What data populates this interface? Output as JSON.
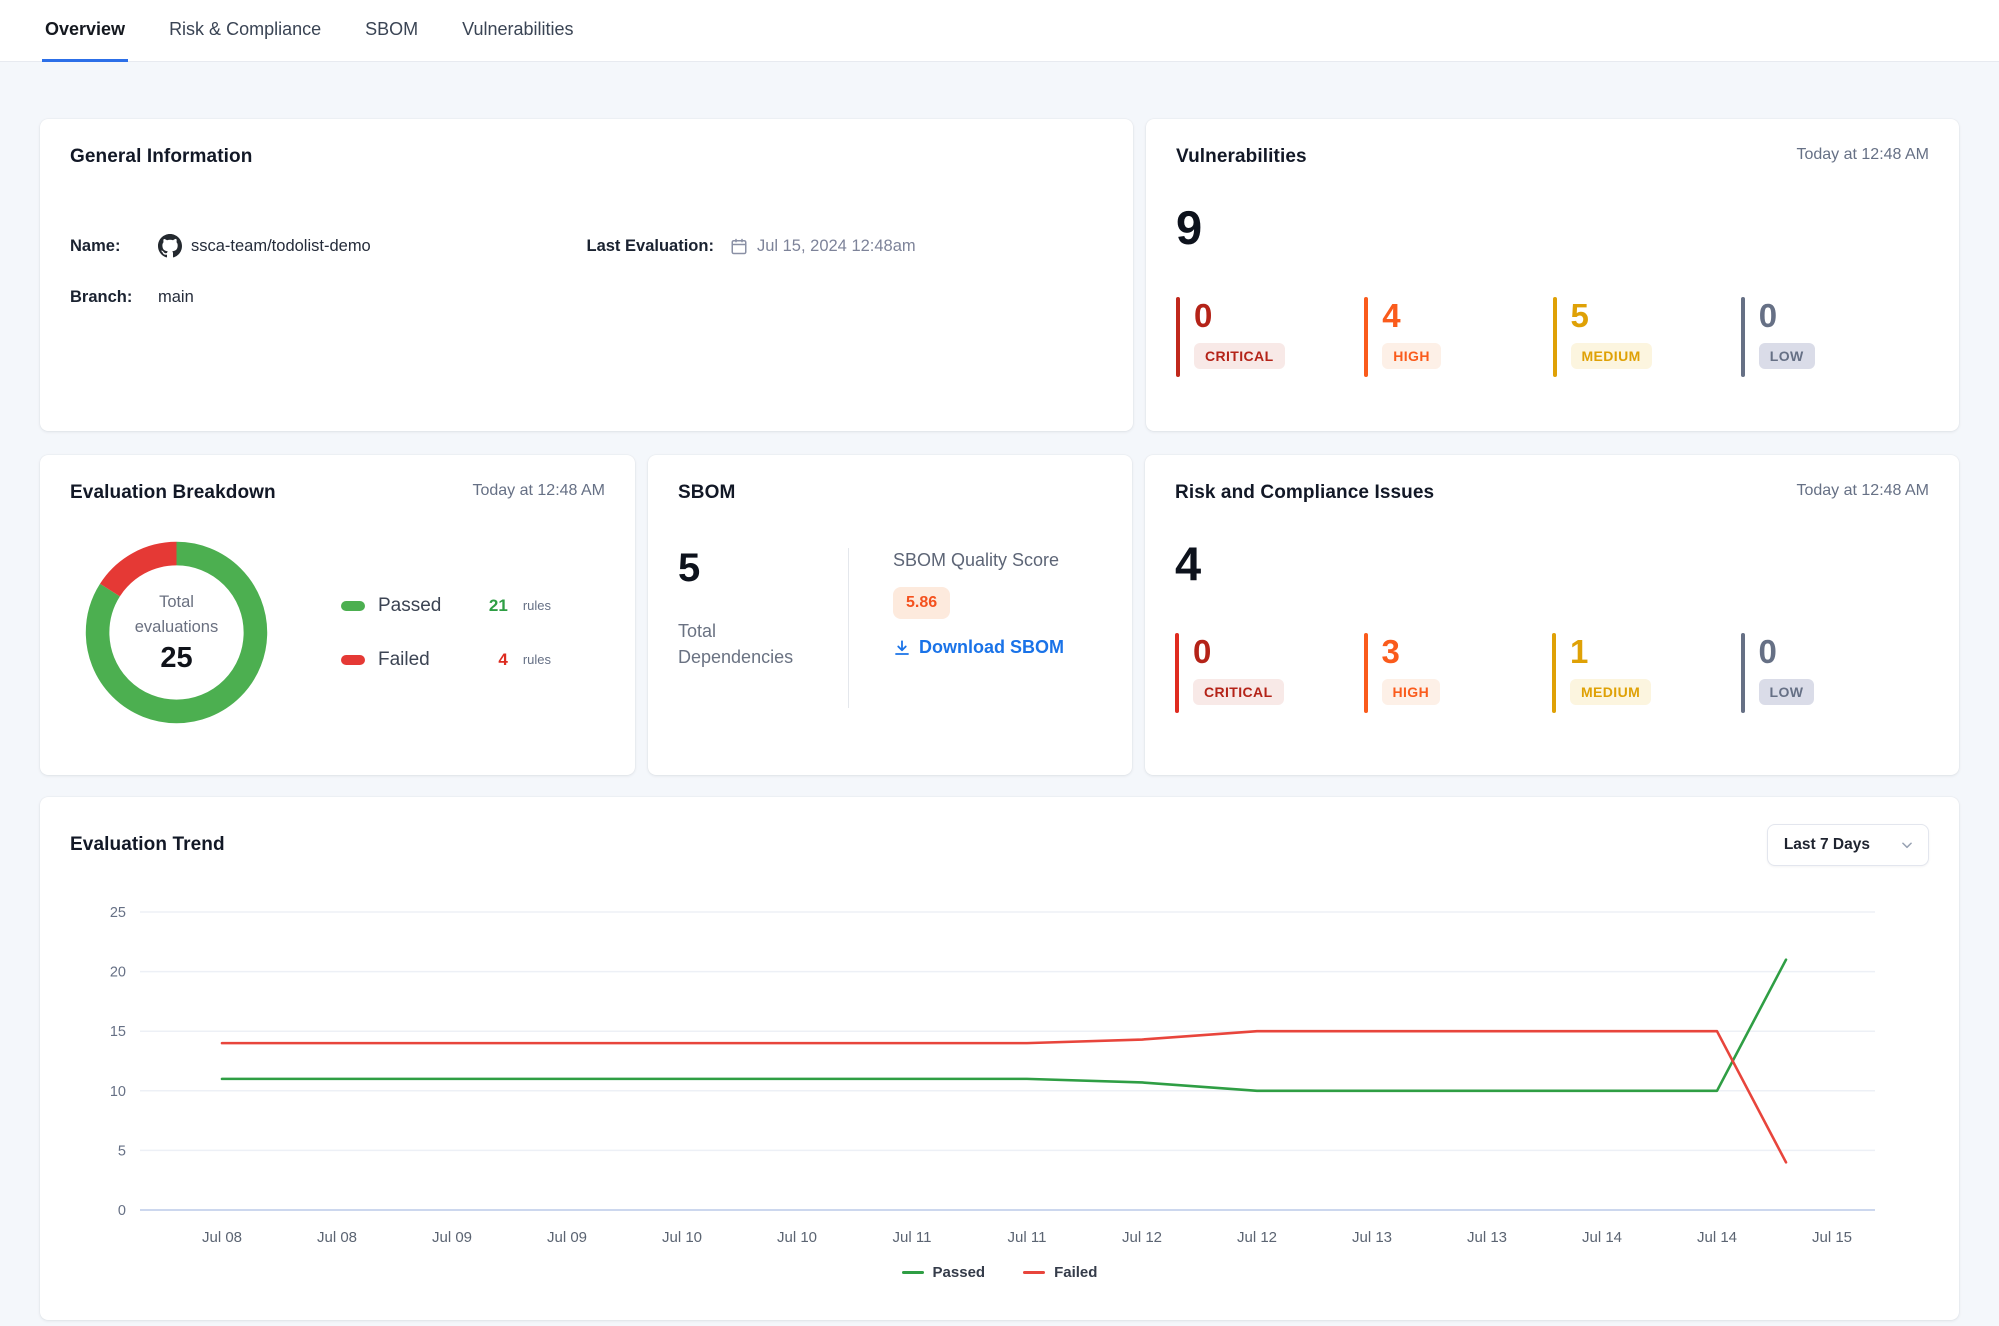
{
  "tabs": [
    {
      "label": "Overview",
      "active": true
    },
    {
      "label": "Risk & Compliance",
      "active": false
    },
    {
      "label": "SBOM",
      "active": false
    },
    {
      "label": "Vulnerabilities",
      "active": false
    }
  ],
  "general": {
    "title": "General Information",
    "name_label": "Name:",
    "name_value": "ssca-team/todolist-demo",
    "branch_label": "Branch:",
    "branch_value": "main",
    "last_eval_label": "Last Evaluation:",
    "last_eval_value": "Jul 15, 2024 12:48am"
  },
  "vulnerabilities": {
    "title": "Vulnerabilities",
    "timestamp": "Today at 12:48 AM",
    "total": "9",
    "severities": [
      {
        "label": "CRITICAL",
        "value": "0",
        "color": "#b42318",
        "bar": "#c0281c",
        "bg": "#f8e9e7"
      },
      {
        "label": "HIGH",
        "value": "4",
        "color": "#fa5b1c",
        "bar": "#fa5b1c",
        "bg": "#fdf0e7"
      },
      {
        "label": "MEDIUM",
        "value": "5",
        "color": "#dfa106",
        "bar": "#dfa106",
        "bg": "#fcf5df"
      },
      {
        "label": "LOW",
        "value": "0",
        "color": "#667085",
        "bar": "#667085",
        "bg": "#dadce8"
      }
    ]
  },
  "evaluation_breakdown": {
    "title": "Evaluation Breakdown",
    "timestamp": "Today at 12:48 AM",
    "center_label": "Total evaluations",
    "total": "25",
    "donut": {
      "passed": 21,
      "failed": 4,
      "passed_color": "#4caf50",
      "failed_color": "#e53935"
    },
    "legend": [
      {
        "label": "Passed",
        "value": "21",
        "unit": "rules",
        "swatch": "#4caf50",
        "value_color": "#2e9e44"
      },
      {
        "label": "Failed",
        "value": "4",
        "unit": "rules",
        "swatch": "#e53935",
        "value_color": "#dd2c20"
      }
    ]
  },
  "sbom": {
    "title": "SBOM",
    "total": "5",
    "total_label": "Total Dependencies",
    "score_label": "SBOM Quality Score",
    "score": "5.86",
    "download_label": "Download SBOM"
  },
  "risk": {
    "title": "Risk and Compliance Issues",
    "timestamp": "Today at 12:48 AM",
    "total": "4",
    "severities": [
      {
        "label": "CRITICAL",
        "value": "0",
        "color": "#b42318",
        "bar": "#df2b20",
        "bg": "#f8e9e7"
      },
      {
        "label": "HIGH",
        "value": "3",
        "color": "#fa5b1c",
        "bar": "#fa5b1c",
        "bg": "#fdf0e7"
      },
      {
        "label": "MEDIUM",
        "value": "1",
        "color": "#dfa106",
        "bar": "#dfa106",
        "bg": "#fcf5df"
      },
      {
        "label": "LOW",
        "value": "0",
        "color": "#667085",
        "bar": "#667085",
        "bg": "#dadce8"
      }
    ]
  },
  "trend": {
    "title": "Evaluation Trend",
    "range_label": "Last 7 Days"
  },
  "chart_data": {
    "type": "line",
    "title": "Evaluation Trend",
    "x": [
      "Jul 08",
      "Jul 08",
      "Jul 09",
      "Jul 09",
      "Jul 10",
      "Jul 10",
      "Jul 11",
      "Jul 11",
      "Jul 12",
      "Jul 12",
      "Jul 13",
      "Jul 13",
      "Jul 14",
      "Jul 14",
      "Jul 15"
    ],
    "series": [
      {
        "name": "Passed",
        "color": "#2f9e44",
        "values": [
          11,
          11,
          11,
          11,
          11,
          11,
          11,
          11,
          10.7,
          10,
          10,
          10,
          10,
          10,
          21
        ]
      },
      {
        "name": "Failed",
        "color": "#e8453c",
        "values": [
          14,
          14,
          14,
          14,
          14,
          14,
          14,
          14,
          14.3,
          15,
          15,
          15,
          15,
          15,
          4
        ]
      }
    ],
    "ylim": [
      0,
      25
    ],
    "yticks": [
      0,
      5,
      10,
      15,
      20,
      25
    ],
    "grid": true,
    "legend_position": "bottom",
    "last_point_offset": 0.6
  }
}
